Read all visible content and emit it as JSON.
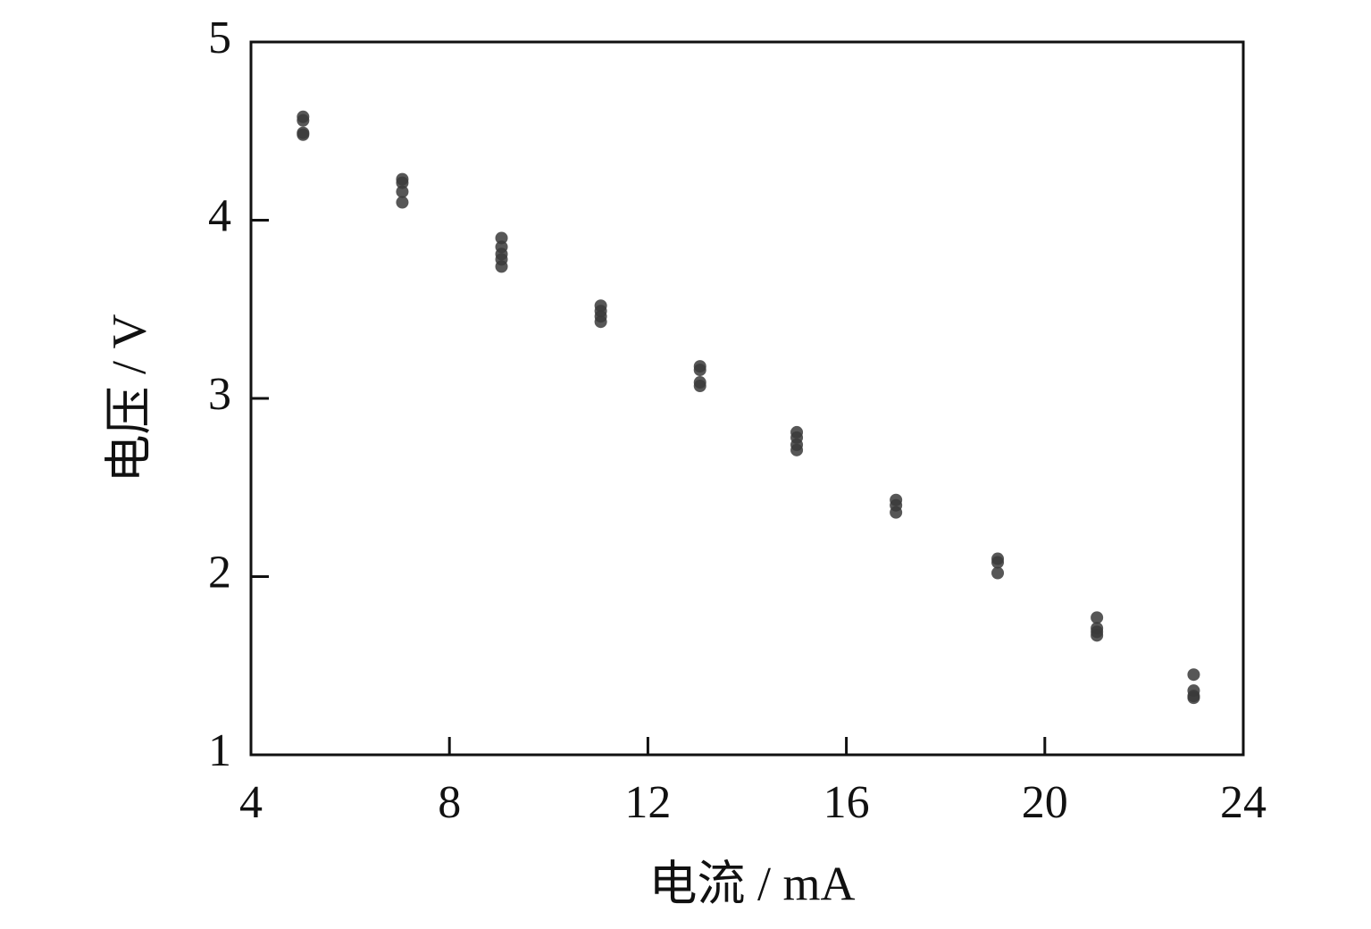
{
  "chart_data": {
    "type": "scatter",
    "x_label": "电流  / mA",
    "y_label": "电压  / V",
    "xlim": [
      4,
      24
    ],
    "xticks": [
      4,
      8,
      12,
      16,
      20,
      24
    ],
    "ylim": [
      1,
      5
    ],
    "yticks": [
      1,
      2,
      3,
      4,
      5
    ],
    "grid": false,
    "series": [
      {
        "color": "#3a3a3a",
        "x": [
          5.05,
          5.05,
          5.05,
          5.05,
          7.05,
          7.05,
          7.05,
          7.05,
          9.05,
          9.05,
          9.05,
          9.05,
          9.05,
          11.05,
          11.05,
          11.05,
          11.05,
          13.05,
          13.05,
          13.05,
          13.05,
          15.0,
          15.0,
          15.0,
          15.0,
          17.0,
          17.0,
          17.0,
          19.05,
          19.05,
          19.05,
          21.05,
          21.05,
          21.05,
          21.05,
          23.0,
          23.0,
          23.0,
          23.0
        ],
        "values": [
          4.58,
          4.56,
          4.49,
          4.48,
          4.23,
          4.21,
          4.16,
          4.1,
          3.9,
          3.85,
          3.81,
          3.78,
          3.74,
          3.52,
          3.49,
          3.46,
          3.43,
          3.18,
          3.16,
          3.09,
          3.07,
          2.81,
          2.78,
          2.74,
          2.71,
          2.43,
          2.4,
          2.36,
          2.1,
          2.08,
          2.02,
          1.77,
          1.71,
          1.69,
          1.67,
          1.45,
          1.36,
          1.33,
          1.32
        ]
      }
    ]
  }
}
